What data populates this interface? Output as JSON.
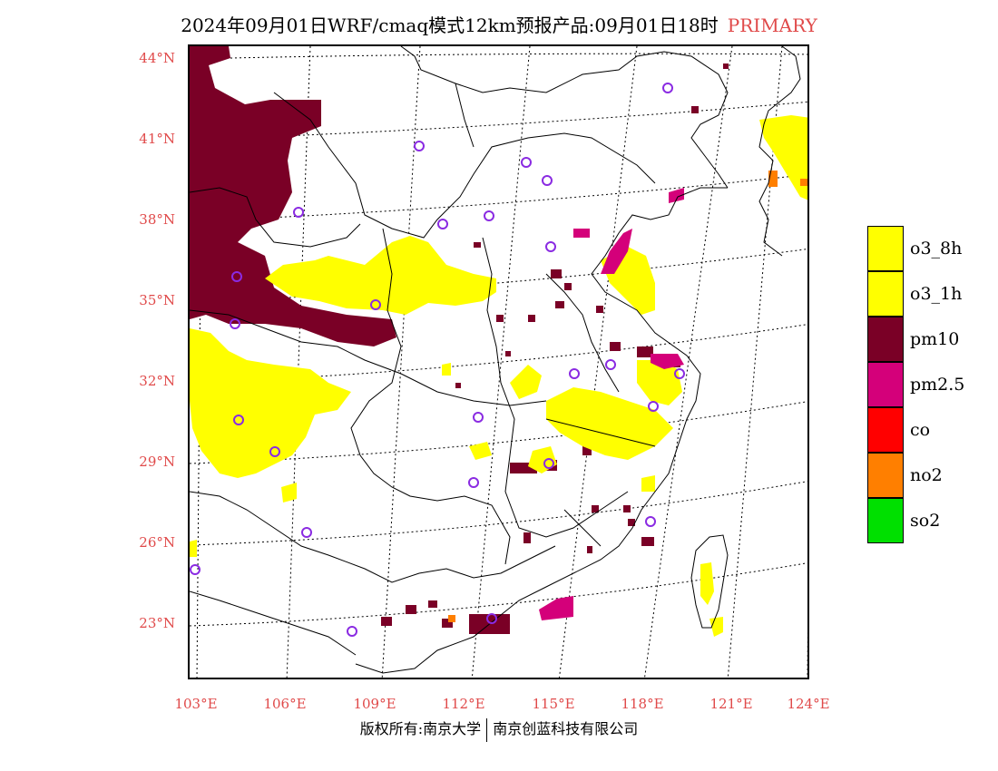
{
  "title": {
    "main": "2024年09月01日WRF/cmaq模式12km预报产品:09月01日18时",
    "tag": "PRIMARY"
  },
  "axes": {
    "lat_labels": [
      "44°N",
      "41°N",
      "38°N",
      "35°N",
      "32°N",
      "29°N",
      "26°N",
      "23°N"
    ],
    "lon_labels": [
      "103°E",
      "106°E",
      "109°E",
      "112°E",
      "115°E",
      "118°E",
      "121°E",
      "124°E"
    ]
  },
  "legend": [
    {
      "label": "o3_8h",
      "color": "#ffff00"
    },
    {
      "label": "o3_1h",
      "color": "#ffff00"
    },
    {
      "label": "pm10",
      "color": "#7a0026"
    },
    {
      "label": "pm2.5",
      "color": "#d4007a"
    },
    {
      "label": "co",
      "color": "#ff0000"
    },
    {
      "label": "no2",
      "color": "#ff7f00"
    },
    {
      "label": "so2",
      "color": "#00e000"
    }
  ],
  "footer": {
    "left": "版权所有:南京大学",
    "right": "南京创蓝科技有限公司"
  },
  "colors": {
    "accent": "#e04a4a",
    "pm10": "#7a0026",
    "pm25": "#d4007a",
    "o3": "#ffff00",
    "no2": "#ff7f00",
    "station": "#8a2be2"
  }
}
